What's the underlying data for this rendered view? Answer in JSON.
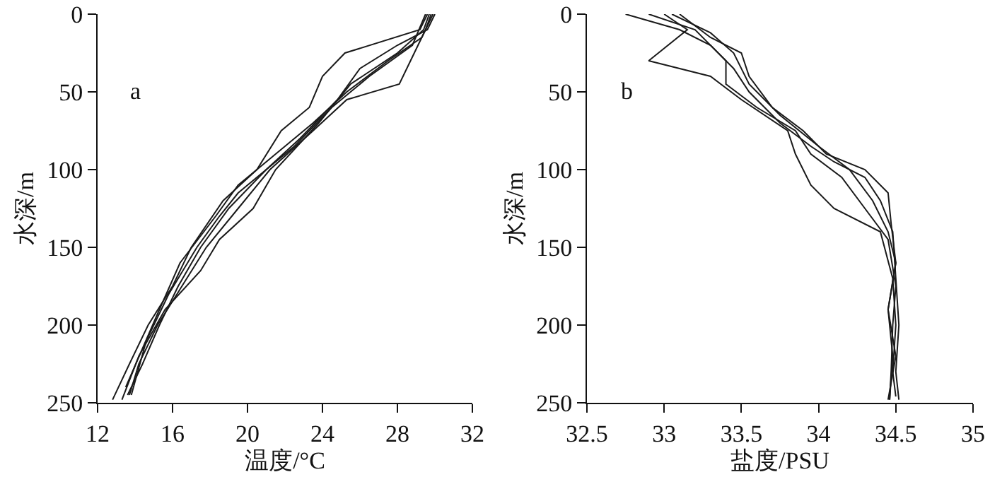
{
  "chart_data": [
    {
      "type": "line",
      "xlabel": "温度/°C",
      "ylabel": "水深/m",
      "annotations": [
        "a"
      ],
      "xlim": [
        12,
        32
      ],
      "xticks": [
        12,
        16,
        20,
        24,
        28,
        32
      ],
      "ylim": [
        250,
        0
      ],
      "yticks": [
        0,
        50,
        100,
        150,
        200,
        250
      ],
      "series": [
        {
          "color": "#1a1a1a",
          "x": [
            29.8,
            29.5,
            28.7,
            28.1,
            25.3,
            23.5,
            21.2,
            19.5,
            17.8,
            16.5,
            15.2,
            14.2,
            13.7
          ],
          "values": [
            0,
            10,
            30,
            45,
            55,
            75,
            100,
            125,
            150,
            175,
            200,
            225,
            245
          ]
        },
        {
          "color": "#1a1a1a",
          "x": [
            29.6,
            29.2,
            25.2,
            24,
            23.3,
            21.8,
            20.5,
            18.7,
            17,
            16,
            14.7,
            13.7,
            12.8
          ],
          "values": [
            0,
            10,
            25,
            40,
            60,
            75,
            100,
            120,
            150,
            175,
            200,
            225,
            248
          ]
        },
        {
          "color": "#1a1a1a",
          "x": [
            30,
            29.6,
            28,
            26,
            24.8,
            22.8,
            21,
            19,
            17.5,
            16.3,
            15.3,
            14.4,
            13.6
          ],
          "values": [
            0,
            10,
            20,
            35,
            55,
            80,
            100,
            125,
            150,
            175,
            200,
            225,
            245
          ]
        },
        {
          "color": "#1a1a1a",
          "x": [
            29.9,
            29.3,
            27.5,
            25.3,
            23.5,
            21.5,
            19.5,
            18.3,
            16.4,
            15.3,
            14.4,
            13.5
          ],
          "values": [
            0,
            15,
            30,
            50,
            70,
            90,
            110,
            130,
            160,
            190,
            215,
            240
          ]
        },
        {
          "color": "#1a1a1a",
          "x": [
            29.7,
            29.4,
            28,
            25.5,
            23.8,
            21.5,
            20.3,
            18.5,
            17.5,
            15.6,
            14.2,
            13.3
          ],
          "values": [
            0,
            10,
            25,
            45,
            70,
            100,
            125,
            145,
            165,
            190,
            220,
            248
          ]
        },
        {
          "color": "#1a1a1a",
          "x": [
            29.5,
            28.8,
            26.5,
            24.5,
            22.5,
            21,
            19.5,
            18.5,
            17.3,
            15.8,
            14.6,
            13.8
          ],
          "values": [
            0,
            20,
            40,
            60,
            85,
            100,
            115,
            130,
            150,
            180,
            210,
            245
          ]
        }
      ]
    },
    {
      "type": "line",
      "xlabel": "盐度/PSU",
      "ylabel": "水深/m",
      "annotations": [
        "b"
      ],
      "xlim": [
        32.5,
        35
      ],
      "xticks": [
        32.5,
        33,
        33.5,
        34,
        34.5,
        35
      ],
      "ylim": [
        250,
        0
      ],
      "yticks": [
        0,
        50,
        100,
        150,
        200,
        250
      ],
      "series": [
        {
          "color": "#1a1a1a",
          "x": [
            32.75,
            33.1,
            33.3,
            33.45,
            33.55,
            33.75,
            33.95,
            34.1,
            34.3,
            34.4,
            34.48,
            34.5,
            34.52,
            34.5,
            34.52
          ],
          "values": [
            0,
            10,
            20,
            35,
            50,
            70,
            85,
            95,
            105,
            120,
            140,
            170,
            200,
            230,
            248
          ]
        },
        {
          "color": "#1a1a1a",
          "x": [
            32.9,
            33.2,
            33.4,
            33.4,
            33.6,
            33.85,
            33.95,
            34.15,
            34.3,
            34.45,
            34.5,
            34.48,
            34.47,
            34.46
          ],
          "values": [
            0,
            10,
            30,
            45,
            60,
            75,
            90,
            105,
            125,
            145,
            175,
            200,
            230,
            248
          ]
        },
        {
          "color": "#1a1a1a",
          "x": [
            33.1,
            33.3,
            33.5,
            33.55,
            33.7,
            33.9,
            34.05,
            34.3,
            34.45,
            34.47,
            34.5,
            34.45,
            34.48,
            34.46
          ],
          "values": [
            0,
            15,
            25,
            40,
            60,
            75,
            90,
            100,
            115,
            135,
            160,
            190,
            220,
            248
          ]
        },
        {
          "color": "#1a1a1a",
          "x": [
            33,
            33.15,
            32.9,
            33.3,
            33.5,
            33.8,
            33.85,
            33.95,
            34.1,
            34.4,
            34.48,
            34.5,
            34.48,
            34.5
          ],
          "values": [
            0,
            10,
            30,
            40,
            55,
            75,
            90,
            110,
            125,
            140,
            170,
            200,
            230,
            246
          ]
        },
        {
          "color": "#1a1a1a",
          "x": [
            33.05,
            33.3,
            33.45,
            33.55,
            33.75,
            34,
            34.2,
            34.35,
            34.45,
            34.5,
            34.45,
            34.5,
            34.45
          ],
          "values": [
            0,
            12,
            25,
            45,
            65,
            85,
            100,
            120,
            140,
            160,
            190,
            220,
            248
          ]
        }
      ]
    }
  ]
}
